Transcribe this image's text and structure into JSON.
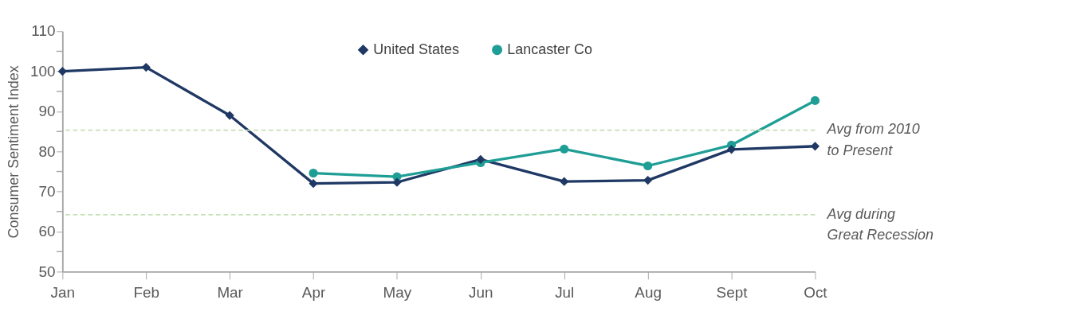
{
  "chart_data": {
    "type": "line",
    "ylabel": "Consumer Sentiment Index",
    "categories": [
      "Jan",
      "Feb",
      "Mar",
      "Apr",
      "May",
      "Jun",
      "Jul",
      "Aug",
      "Sept",
      "Oct"
    ],
    "series": [
      {
        "name": "United States",
        "color": "#1f3864",
        "marker": "diamond",
        "values": [
          100,
          101,
          89,
          72,
          72.3,
          78,
          72.5,
          72.8,
          80.5,
          81.3
        ]
      },
      {
        "name": "Lancaster Co",
        "color": "#1f9e96",
        "marker": "circle",
        "values": [
          null,
          null,
          null,
          74.6,
          73.7,
          77.2,
          80.6,
          76.4,
          81.6,
          92.7
        ]
      }
    ],
    "ylim": [
      50,
      110
    ],
    "yticks": [
      50,
      {
        "value": 55,
        "label": null
      },
      60,
      {
        "value": 65,
        "label": null
      },
      70,
      {
        "value": 75,
        "label": null
      },
      80,
      {
        "value": 85,
        "label": null
      },
      90,
      {
        "value": 95,
        "label": null
      },
      100,
      {
        "value": 105,
        "label": null
      },
      110
    ],
    "ref_lines": [
      {
        "axis": "y",
        "value": 85.3,
        "label": "Avg from 2010 to Present",
        "color": "#c5e0b4",
        "line_style": "dashed"
      },
      {
        "axis": "y",
        "value": 64.2,
        "label": "Avg during Great Recession",
        "color": "#c5e0b4",
        "line_style": "dashed"
      }
    ],
    "grid": false,
    "legend": "top",
    "line_style": "solid"
  }
}
